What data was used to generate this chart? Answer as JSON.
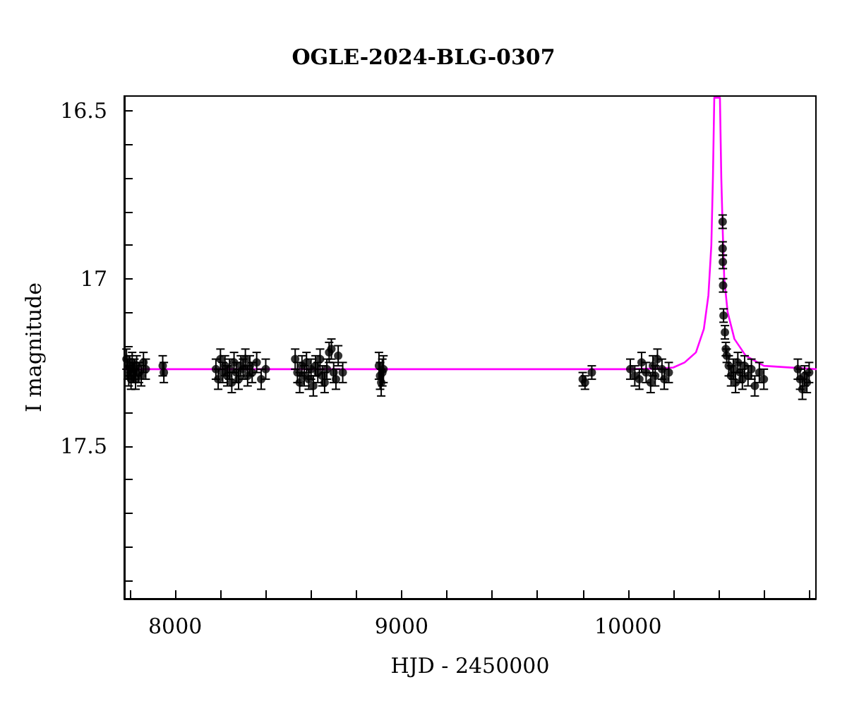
{
  "chart_data": {
    "type": "scatter",
    "title": "OGLE-2024-BLG-0307",
    "xlabel": "HJD - 2450000",
    "ylabel": "I magnitude",
    "xlim": [
      7775,
      10830
    ],
    "ylim": [
      17.955,
      16.455
    ],
    "xticks": [
      {
        "value": 7800,
        "label": null
      },
      8000,
      {
        "value": 8200,
        "label": null
      },
      {
        "value": 8400,
        "label": null
      },
      {
        "value": 8600,
        "label": null
      },
      {
        "value": 8800,
        "label": null
      },
      9000,
      {
        "value": 9200,
        "label": null
      },
      {
        "value": 9400,
        "label": null
      },
      {
        "value": 9600,
        "label": null
      },
      {
        "value": 9800,
        "label": null
      },
      10000,
      {
        "value": 10200,
        "label": null
      },
      {
        "value": 10400,
        "label": null
      },
      {
        "value": 10600,
        "label": null
      },
      {
        "value": 10800,
        "label": null
      }
    ],
    "yticks": [
      16.5,
      {
        "value": 16.6,
        "label": null
      },
      {
        "value": 16.7,
        "label": null
      },
      {
        "value": 16.8,
        "label": null
      },
      {
        "value": 16.9,
        "label": null
      },
      17,
      {
        "value": 17.1,
        "label": null
      },
      {
        "value": 17.2,
        "label": null
      },
      {
        "value": 17.3,
        "label": null
      },
      {
        "value": 17.4,
        "label": null
      },
      17.5,
      {
        "value": 17.6,
        "label": null
      },
      {
        "value": 17.7,
        "label": null
      },
      {
        "value": 17.8,
        "label": null
      },
      {
        "value": 17.9,
        "label": null
      }
    ],
    "grid": false,
    "marker": "circle",
    "series": [
      {
        "type": "line",
        "marker": "none",
        "color": "#ff00ff",
        "x": [
          7775,
          9000,
          10000,
          10150,
          10200,
          10250,
          10300,
          10335,
          10355,
          10368,
          10375,
          10381,
          10406,
          10412,
          10418,
          10425,
          10440,
          10470,
          10520,
          10600,
          10830
        ],
        "values": [
          17.27,
          17.27,
          17.27,
          17.268,
          17.265,
          17.25,
          17.22,
          17.15,
          17.05,
          16.9,
          16.7,
          16.46,
          16.46,
          16.7,
          16.85,
          17.0,
          17.1,
          17.18,
          17.23,
          17.26,
          17.27
        ]
      },
      {
        "color": "#000000",
        "x": [
          7785,
          7790,
          7795,
          7800,
          7805,
          7810,
          7815,
          7820,
          7825,
          7830,
          7840,
          7850,
          7860,
          7870,
          7945,
          7950,
          8180,
          8190,
          8200,
          8210,
          8220,
          8230,
          8240,
          8250,
          8260,
          8270,
          8280,
          8290,
          8300,
          8310,
          8320,
          8330,
          8340,
          8360,
          8380,
          8400,
          8530,
          8540,
          8550,
          8560,
          8570,
          8580,
          8590,
          8600,
          8610,
          8620,
          8630,
          8640,
          8650,
          8660,
          8670,
          8680,
          8690,
          8700,
          8710,
          8720,
          8740,
          8900,
          8905,
          8910,
          8915,
          8920,
          9800,
          9810,
          9840,
          10010,
          10030,
          10050,
          10060,
          10080,
          10100,
          10110,
          10120,
          10130,
          10150,
          10160,
          10180,
          10418,
          10418,
          10419,
          10420,
          10422,
          10428,
          10432,
          10436,
          10445,
          10455,
          10465,
          10475,
          10485,
          10495,
          10505,
          10515,
          10530,
          10545,
          10560,
          10580,
          10600,
          10750,
          10760,
          10770,
          10780,
          10790,
          10800
        ],
        "values": [
          17.24,
          17.27,
          17.29,
          17.26,
          17.3,
          17.25,
          17.28,
          17.27,
          17.3,
          17.26,
          17.28,
          17.29,
          17.25,
          17.27,
          17.26,
          17.28,
          17.27,
          17.3,
          17.24,
          17.28,
          17.26,
          17.29,
          17.27,
          17.31,
          17.25,
          17.28,
          17.3,
          17.26,
          17.27,
          17.24,
          17.29,
          17.26,
          17.28,
          17.25,
          17.3,
          17.27,
          17.24,
          17.28,
          17.31,
          17.26,
          17.29,
          17.25,
          17.3,
          17.27,
          17.32,
          17.26,
          17.28,
          17.24,
          17.29,
          17.31,
          17.27,
          17.22,
          17.21,
          17.28,
          17.3,
          17.23,
          17.28,
          17.26,
          17.29,
          17.31,
          17.28,
          17.27,
          17.3,
          17.31,
          17.28,
          17.27,
          17.29,
          17.3,
          17.25,
          17.28,
          17.31,
          17.26,
          17.29,
          17.24,
          17.27,
          17.3,
          17.28,
          16.83,
          16.91,
          16.95,
          17.02,
          17.11,
          17.16,
          17.21,
          17.23,
          17.26,
          17.29,
          17.27,
          17.31,
          17.25,
          17.28,
          17.3,
          17.26,
          17.29,
          17.27,
          17.32,
          17.28,
          17.3,
          17.27,
          17.3,
          17.33,
          17.29,
          17.31,
          17.28
        ],
        "errors": [
          0.03,
          0.03,
          0.03,
          0.03,
          0.03,
          0.03,
          0.03,
          0.03,
          0.03,
          0.03,
          0.03,
          0.03,
          0.03,
          0.03,
          0.03,
          0.03,
          0.03,
          0.03,
          0.03,
          0.03,
          0.03,
          0.03,
          0.03,
          0.03,
          0.03,
          0.03,
          0.03,
          0.03,
          0.03,
          0.03,
          0.03,
          0.03,
          0.03,
          0.03,
          0.03,
          0.03,
          0.03,
          0.03,
          0.03,
          0.03,
          0.03,
          0.03,
          0.03,
          0.03,
          0.03,
          0.03,
          0.03,
          0.03,
          0.03,
          0.03,
          0.03,
          0.03,
          0.03,
          0.03,
          0.03,
          0.03,
          0.03,
          0.04,
          0.04,
          0.04,
          0.04,
          0.04,
          0.02,
          0.02,
          0.02,
          0.03,
          0.03,
          0.03,
          0.03,
          0.03,
          0.03,
          0.03,
          0.03,
          0.03,
          0.03,
          0.03,
          0.03,
          0.02,
          0.02,
          0.02,
          0.02,
          0.02,
          0.02,
          0.02,
          0.02,
          0.03,
          0.03,
          0.03,
          0.03,
          0.03,
          0.03,
          0.03,
          0.03,
          0.03,
          0.03,
          0.03,
          0.03,
          0.03,
          0.03,
          0.03,
          0.03,
          0.03,
          0.03,
          0.03
        ]
      }
    ]
  }
}
